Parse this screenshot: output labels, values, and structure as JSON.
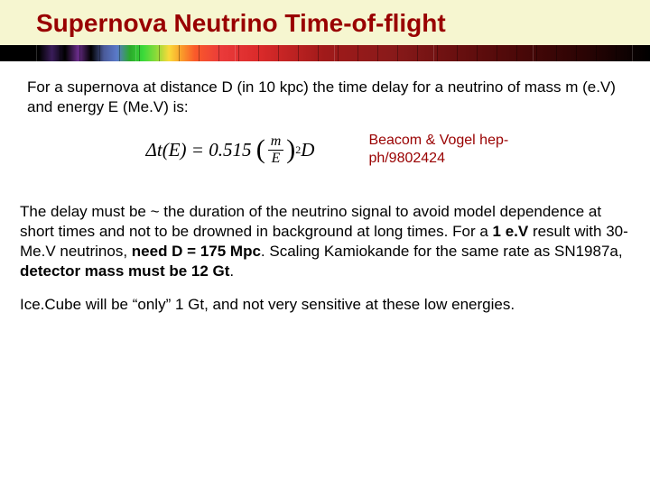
{
  "title": "Supernova Neutrino Time-of-flight",
  "intro": "For a supernova at distance D (in 10 kpc) the time delay for a neutrino of mass m (e.V) and energy E (Me.V) is:",
  "formula": {
    "lhs": "Δt(E) = 0.515",
    "num": "m",
    "den": "E",
    "exp": "2",
    "tail": " D"
  },
  "attribution": "Beacom & Vogel hep-ph/9802424",
  "body_a": "The delay must be ~ the duration of the neutrino signal to avoid model dependence at short times and not to be drowned in background at long times.  For a ",
  "body_b": "1 e.V",
  "body_c": " result with 30-Me.V neutrinos, ",
  "body_d": "need D = 175 Mpc",
  "body_e": ".  Scaling Kamiokande for the same rate as SN1987a, ",
  "body_f": "detector mass must be 12 Gt",
  "body_g": ".",
  "closing": "Ice.Cube will be “only” 1 Gt, and not very sensitive at these low energies.",
  "colors": {
    "title_bg": "#f6f6d0",
    "title_text": "#990000",
    "body_text": "#000000",
    "attrib_text": "#990000",
    "page_bg": "#ffffff"
  },
  "typography": {
    "title_fontsize": 28,
    "body_fontsize": 17,
    "formula_fontsize": 21,
    "attrib_fontsize": 16
  }
}
